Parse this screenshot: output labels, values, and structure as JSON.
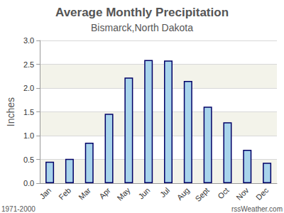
{
  "chart_data": {
    "type": "bar",
    "title": "Average Monthly Precipitation",
    "subtitle": "Bismarck,North Dakota",
    "y_label": "Inches",
    "categories": [
      "Jan",
      "Feb",
      "Mar",
      "Apr",
      "May",
      "Jun",
      "Jul",
      "Aug",
      "Sept",
      "Oct",
      "Nov",
      "Dec"
    ],
    "values": [
      0.45,
      0.51,
      0.85,
      1.46,
      2.22,
      2.59,
      2.58,
      2.15,
      1.61,
      1.28,
      0.7,
      0.43
    ],
    "color": "#a8d4ec",
    "ylim": [
      0,
      3
    ],
    "yticks": [
      {
        "value": 0,
        "label": "0.0"
      },
      0.5,
      {
        "value": 1,
        "label": "1.0"
      },
      1.5,
      {
        "value": 2,
        "label": "2.0"
      },
      2.5,
      {
        "value": 3,
        "label": "3.0"
      }
    ],
    "grid": true,
    "annotations": [
      "1971-2000",
      "rssWeather.com"
    ]
  }
}
